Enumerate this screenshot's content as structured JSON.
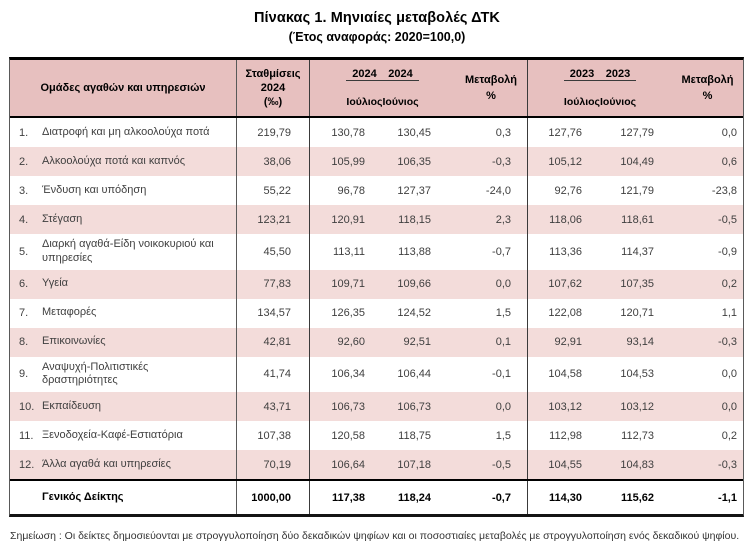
{
  "title": "Πίνακας 1. Μηνιαίες μεταβολές ΔΤΚ",
  "subtitle": "(Έτος αναφοράς: 2020=100,0)",
  "colors": {
    "header_bg": "#e7c0bf",
    "stripe_bg": "#f3dcda"
  },
  "table": {
    "headers": {
      "groups_col": "Ομάδες αγαθών και υπηρεσιών",
      "weights_line1": "Σταθμίσεις",
      "weights_line2": "2024",
      "weights_line3": "(‰)",
      "year_2024": "2024",
      "year_2023": "2023",
      "month_jul": "Ιούλιος",
      "month_jun": "Ιούνιος",
      "change_line1": "Μεταβολή",
      "change_line2": "%"
    },
    "rows": [
      {
        "no": "1.",
        "label": "Διατροφή και μη αλκοολούχα ποτά",
        "weight": "219,79",
        "jul2024": "130,78",
        "jun2024": "130,45",
        "pct2024": "0,3",
        "jul2023": "127,76",
        "jun2023": "127,79",
        "pct2023": "0,0"
      },
      {
        "no": "2.",
        "label": "Αλκοολούχα ποτά και καπνός",
        "weight": "38,06",
        "jul2024": "105,99",
        "jun2024": "106,35",
        "pct2024": "-0,3",
        "jul2023": "105,12",
        "jun2023": "104,49",
        "pct2023": "0,6"
      },
      {
        "no": "3.",
        "label": "Ένδυση και υπόδηση",
        "weight": "55,22",
        "jul2024": "96,78",
        "jun2024": "127,37",
        "pct2024": "-24,0",
        "jul2023": "92,76",
        "jun2023": "121,79",
        "pct2023": "-23,8"
      },
      {
        "no": "4.",
        "label": "Στέγαση",
        "weight": "123,21",
        "jul2024": "120,91",
        "jun2024": "118,15",
        "pct2024": "2,3",
        "jul2023": "118,06",
        "jun2023": "118,61",
        "pct2023": "-0,5"
      },
      {
        "no": "5.",
        "label": "Διαρκή αγαθά-Είδη νοικοκυριού και\nυπηρεσίες",
        "weight": "45,50",
        "jul2024": "113,11",
        "jun2024": "113,88",
        "pct2024": "-0,7",
        "jul2023": "113,36",
        "jun2023": "114,37",
        "pct2023": "-0,9"
      },
      {
        "no": "6.",
        "label": "Υγεία",
        "weight": "77,83",
        "jul2024": "109,71",
        "jun2024": "109,66",
        "pct2024": "0,0",
        "jul2023": "107,62",
        "jun2023": "107,35",
        "pct2023": "0,2"
      },
      {
        "no": "7.",
        "label": "Μεταφορές",
        "weight": "134,57",
        "jul2024": "126,35",
        "jun2024": "124,52",
        "pct2024": "1,5",
        "jul2023": "122,08",
        "jun2023": "120,71",
        "pct2023": "1,1"
      },
      {
        "no": "8.",
        "label": "Επικοινωνίες",
        "weight": "42,81",
        "jul2024": "92,60",
        "jun2024": "92,51",
        "pct2024": "0,1",
        "jul2023": "92,91",
        "jun2023": "93,14",
        "pct2023": "-0,3"
      },
      {
        "no": "9.",
        "label": "Αναψυχή-Πολιτιστικές\nδραστηριότητες",
        "weight": "41,74",
        "jul2024": "106,34",
        "jun2024": "106,44",
        "pct2024": "-0,1",
        "jul2023": "104,58",
        "jun2023": "104,53",
        "pct2023": "0,0"
      },
      {
        "no": "10.",
        "label": "Εκπαίδευση",
        "weight": "43,71",
        "jul2024": "106,73",
        "jun2024": "106,73",
        "pct2024": "0,0",
        "jul2023": "103,12",
        "jun2023": "103,12",
        "pct2023": "0,0"
      },
      {
        "no": "11.",
        "label": "Ξενοδοχεία-Καφέ-Εστιατόρια",
        "weight": "107,38",
        "jul2024": "120,58",
        "jun2024": "118,75",
        "pct2024": "1,5",
        "jul2023": "112,98",
        "jun2023": "112,73",
        "pct2023": "0,2"
      },
      {
        "no": "12.",
        "label": "Άλλα αγαθά και υπηρεσίες",
        "weight": "70,19",
        "jul2024": "106,64",
        "jun2024": "107,18",
        "pct2024": "-0,5",
        "jul2023": "104,55",
        "jun2023": "104,83",
        "pct2023": "-0,3"
      }
    ],
    "total": {
      "label": "Γενικός Δείκτης",
      "weight": "1000,00",
      "jul2024": "117,38",
      "jun2024": "118,24",
      "pct2024": "-0,7",
      "jul2023": "114,30",
      "jun2023": "115,62",
      "pct2023": "-1,1"
    }
  },
  "footnote": "Σημείωση : Οι δείκτες δημοσιεύονται με στρογγυλοποίηση δύο δεκαδικών ψηφίων και οι ποσοστιαίες μεταβολές με στρογγυλοποίηση ενός δεκαδικού ψηφίου."
}
